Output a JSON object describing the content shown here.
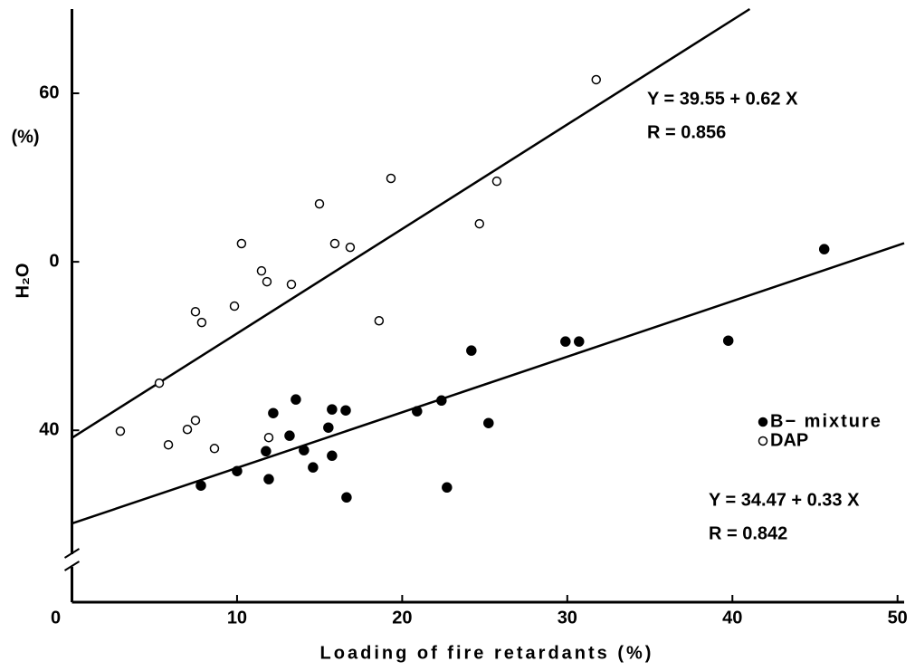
{
  "chart_data": {
    "type": "scatter",
    "x_label": "Loading of fire retardants (%)",
    "y_label": "H₂O",
    "y_unit": "(%)",
    "xlim": [
      0,
      50.4
    ],
    "ylim": [
      29.8,
      65
    ],
    "xticks": [
      0,
      10,
      20,
      30,
      40,
      50
    ],
    "yticks": [
      40,
      {
        "value": 50,
        "label": "0"
      },
      60
    ],
    "y_axis_break": true,
    "legend_position": "right",
    "series": [
      {
        "name": "B− mixture",
        "color": "#000000",
        "marker": "filled",
        "x": [
          7.81,
          10.0,
          11.75,
          11.92,
          12.19,
          13.18,
          13.56,
          14.05,
          14.6,
          15.53,
          15.75,
          15.75,
          16.58,
          16.63,
          20.9,
          22.38,
          22.71,
          24.19,
          25.23,
          29.89,
          30.71,
          39.75,
          45.56
        ],
        "values": [
          36.72,
          37.58,
          38.76,
          37.1,
          41.02,
          39.68,
          41.83,
          38.82,
          37.8,
          40.16,
          41.24,
          38.49,
          41.18,
          36.02,
          41.13,
          41.77,
          36.61,
          44.73,
          40.43,
          45.27,
          45.27,
          45.32,
          50.75
        ],
        "fit": {
          "intercept": 34.47,
          "slope": 0.33,
          "equation": "Y = 34.47 + 0.33 X",
          "r_label": "R = 0.842"
        }
      },
      {
        "name": "DAP",
        "color": "#000000",
        "marker": "open",
        "x": [
          2.93,
          5.29,
          5.84,
          6.99,
          7.48,
          8.63,
          7.48,
          7.86,
          9.84,
          10.27,
          11.48,
          11.81,
          11.92,
          13.29,
          14.99,
          15.92,
          16.85,
          18.6,
          19.32,
          24.68,
          25.73,
          31.75
        ],
        "values": [
          39.95,
          42.8,
          39.14,
          40.05,
          40.59,
          38.92,
          47.04,
          46.4,
          47.37,
          51.08,
          49.46,
          48.82,
          39.57,
          48.66,
          53.44,
          51.08,
          50.86,
          46.5,
          54.95,
          52.26,
          54.78,
          60.81
        ],
        "fit": {
          "intercept": 39.55,
          "slope": 0.62,
          "equation": "Y = 39.55 + 0.62 X",
          "r_label": "R = 0.856"
        }
      }
    ]
  }
}
